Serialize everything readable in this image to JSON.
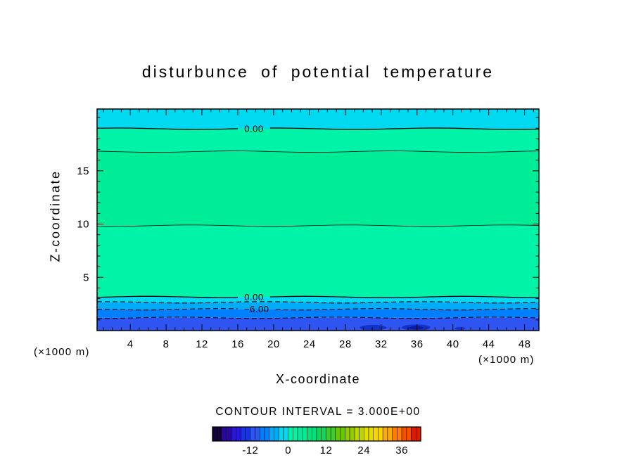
{
  "title": "disturbunce of potential temperature",
  "axis": {
    "x_label": "X-coordinate",
    "z_label": "Z-coordinate",
    "x_units": "(×1000 m)",
    "z_units": "(×1000 m)"
  },
  "footer": {
    "contour_interval": "CONTOUR INTERVAL = 3.000E+00"
  },
  "chart_data": {
    "type": "heatmap",
    "subtype": "filled-contour-cross-section",
    "title": "disturbunce of potential temperature",
    "xlabel": "X-coordinate",
    "ylabel": "Z-coordinate",
    "x_units": "(×1000 m)",
    "z_units": "(×1000 m)",
    "contour_interval": 3.0,
    "x_range": [
      0.3,
      49.6
    ],
    "z_range": [
      0,
      20.8
    ],
    "x_ticks": [
      4,
      8,
      12,
      16,
      20,
      24,
      28,
      32,
      36,
      40,
      44,
      48
    ],
    "x_minor_step": 1,
    "z_ticks": [
      5,
      10,
      15
    ],
    "z_minor_step": 1,
    "bands": [
      {
        "z_from": 18.95,
        "z_to": 20.8,
        "value_range": [
          -3,
          0
        ],
        "color": "#00D9F0"
      },
      {
        "z_from": 16.8,
        "z_to": 18.95,
        "value_range": [
          0,
          3
        ],
        "color": "#00F3A7"
      },
      {
        "z_from": 9.85,
        "z_to": 16.8,
        "value_range": [
          3,
          6
        ],
        "color": "#00EC96"
      },
      {
        "z_from": 3.15,
        "z_to": 9.85,
        "value_range": [
          0,
          3
        ],
        "color": "#00F3A7"
      },
      {
        "z_from": 2.65,
        "z_to": 3.15,
        "value_range": [
          -3,
          0
        ],
        "color": "#00D9F0"
      },
      {
        "z_from": 2.0,
        "z_to": 2.65,
        "value_range": [
          -6,
          -3
        ],
        "color": "#00ACF8"
      },
      {
        "z_from": 1.2,
        "z_to": 2.0,
        "value_range": [
          -9,
          -6
        ],
        "color": "#0080FF"
      },
      {
        "z_from": 0,
        "z_to": 1.2,
        "value_range": [
          -12,
          -9
        ],
        "color": "#2E55F2"
      }
    ],
    "patches": [
      {
        "x": 31.1,
        "z": 0.28,
        "rx": 1.5,
        "rz": 0.26,
        "color": "#1233CE"
      },
      {
        "x": 35.9,
        "z": 0.3,
        "rx": 1.6,
        "rz": 0.28,
        "color": "#1233CE"
      },
      {
        "x": 35.9,
        "z": 0.26,
        "rx": 0.8,
        "rz": 0.16,
        "color": "#0A1C9A"
      },
      {
        "x": 40.8,
        "z": 0.2,
        "rx": 0.6,
        "rz": 0.14,
        "color": "#1233CE"
      }
    ],
    "contours": [
      {
        "z": 18.95,
        "value": 0,
        "style": "solid",
        "label": "0.00",
        "label_x": 17.8,
        "width": 1.3
      },
      {
        "z": 16.8,
        "value": 3,
        "style": "solid",
        "width": 0.8
      },
      {
        "z": 9.85,
        "value": 3,
        "style": "solid",
        "width": 0.8
      },
      {
        "z": 3.15,
        "value": 0,
        "style": "solid",
        "label": "0.00",
        "label_x": 17.8,
        "width": 1.3
      },
      {
        "z": 2.65,
        "value": -3,
        "style": "dashed",
        "width": 1.1
      },
      {
        "z": 2.0,
        "value": -6,
        "style": "dashed",
        "label": "−6.00",
        "label_x": 18.1,
        "width": 1.1
      },
      {
        "z": 1.2,
        "value": -9,
        "style": "dashed",
        "width": 1.1
      }
    ],
    "colorbar": {
      "min": -24,
      "max": 42,
      "step": 3,
      "tick_labels": [
        -12,
        0,
        12,
        24,
        36
      ],
      "colors": [
        "#12033F",
        "#2A07A0",
        "#2A14E0",
        "#1535EC",
        "#2E55F2",
        "#0080FF",
        "#00ACF8",
        "#00D9F0",
        "#00F3A7",
        "#00EC96",
        "#00E27A",
        "#0ED75C",
        "#3FCC2E",
        "#68C900",
        "#93CC00",
        "#BED500",
        "#E3DE00",
        "#FAD400",
        "#FFAB00",
        "#FF7D00",
        "#F84E00",
        "#DE1900"
      ]
    }
  }
}
